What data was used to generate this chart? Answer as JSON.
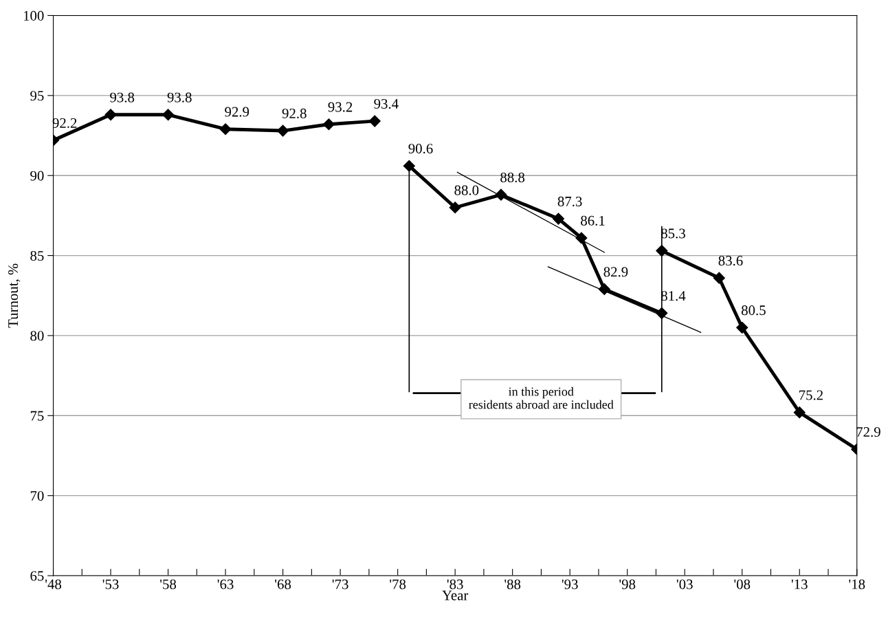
{
  "chart_data": {
    "type": "line",
    "xlabel": "Year",
    "ylabel": "Turnout, %",
    "xlim": [
      1948,
      2018
    ],
    "xticks": [
      {
        "value": 1948,
        "label": "'48"
      },
      {
        "value": 1950.5,
        "label": null
      },
      {
        "value": 1953,
        "label": "'53"
      },
      {
        "value": 1955.5,
        "label": null
      },
      {
        "value": 1958,
        "label": "'58"
      },
      {
        "value": 1960.5,
        "label": null
      },
      {
        "value": 1963,
        "label": "'63"
      },
      {
        "value": 1965.5,
        "label": null
      },
      {
        "value": 1968,
        "label": "'68"
      },
      {
        "value": 1970.5,
        "label": null
      },
      {
        "value": 1973,
        "label": "'73"
      },
      {
        "value": 1975.5,
        "label": null
      },
      {
        "value": 1978,
        "label": "'78"
      },
      {
        "value": 1980.5,
        "label": null
      },
      {
        "value": 1983,
        "label": "'83"
      },
      {
        "value": 1985.5,
        "label": null
      },
      {
        "value": 1988,
        "label": "'88"
      },
      {
        "value": 1990.5,
        "label": null
      },
      {
        "value": 1993,
        "label": "'93"
      },
      {
        "value": 1995.5,
        "label": null
      },
      {
        "value": 1998,
        "label": "'98"
      },
      {
        "value": 2000.5,
        "label": null
      },
      {
        "value": 2003,
        "label": "'03"
      },
      {
        "value": 2005.5,
        "label": null
      },
      {
        "value": 2008,
        "label": "'08"
      },
      {
        "value": 2010.5,
        "label": null
      },
      {
        "value": 2013,
        "label": "'13"
      },
      {
        "value": 2015.5,
        "label": null
      },
      {
        "value": 2018,
        "label": "'18"
      }
    ],
    "ylim": [
      65,
      100
    ],
    "yticks": [
      65,
      70,
      75,
      80,
      85,
      90,
      95,
      100
    ],
    "grid": "y",
    "marker": "diamond",
    "line_style": "solid",
    "series": [
      {
        "color": "#000000",
        "x": [
          1948,
          1953,
          1958,
          1963,
          1968,
          1972,
          1976
        ],
        "values": [
          92.2,
          93.8,
          93.8,
          92.9,
          92.8,
          93.2,
          93.4
        ],
        "value_labels": [
          "92.2",
          "93.8",
          "93.8",
          "92.9",
          "92.8",
          "93.2",
          "93.4"
        ]
      },
      {
        "color": "#000000",
        "x": [
          1979,
          1983,
          1987,
          1992,
          1994,
          1996,
          2001
        ],
        "values": [
          90.6,
          88.0,
          88.8,
          87.3,
          86.1,
          82.9,
          81.4
        ],
        "value_labels": [
          "90.6",
          "88.0",
          "88.8",
          "87.3",
          "86.1",
          "82.9",
          "81.4"
        ]
      },
      {
        "color": "#000000",
        "x": [
          2001,
          2006,
          2008,
          2013,
          2018
        ],
        "values": [
          85.3,
          83.6,
          80.5,
          75.2,
          72.9
        ],
        "value_labels": [
          "85.3",
          "83.6",
          "80.5",
          "75.2",
          "72.9"
        ]
      },
      {
        "type": "line",
        "marker": "none",
        "color": "#000000",
        "x": [
          1983.2,
          1996.0
        ],
        "values": [
          90.2,
          85.2
        ]
      },
      {
        "type": "line",
        "marker": "none",
        "color": "#000000",
        "x": [
          1991.1,
          2004.4
        ],
        "values": [
          84.3,
          80.2
        ]
      }
    ],
    "annotations": [
      "in this period\nresidents abroad are included"
    ]
  }
}
